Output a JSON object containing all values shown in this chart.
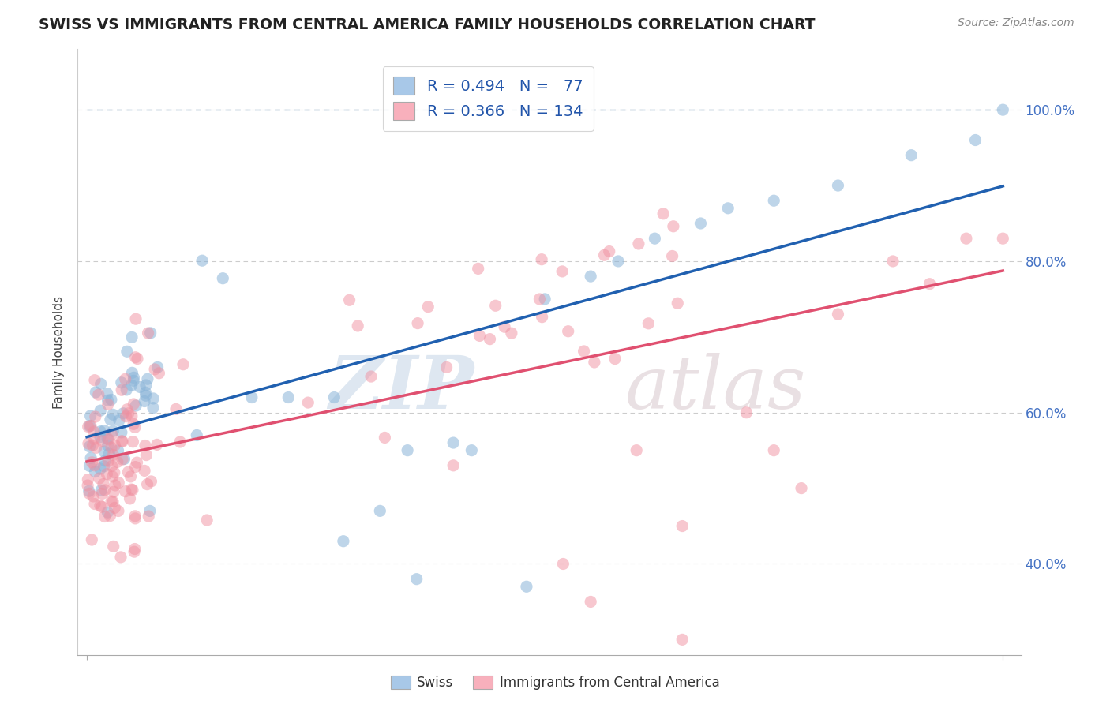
{
  "title": "SWISS VS IMMIGRANTS FROM CENTRAL AMERICA FAMILY HOUSEHOLDS CORRELATION CHART",
  "source": "Source: ZipAtlas.com",
  "ylabel": "Family Households",
  "y_ticks": [
    "40.0%",
    "60.0%",
    "80.0%",
    "100.0%"
  ],
  "y_tick_vals": [
    0.4,
    0.6,
    0.8,
    1.0
  ],
  "xlim": [
    -0.01,
    1.02
  ],
  "ylim": [
    0.28,
    1.08
  ],
  "swiss_color": "#8ab4d8",
  "immigrant_color": "#f090a0",
  "blue_line_color": "#2060b0",
  "pink_line_color": "#e05070",
  "dashed_line_color": "#90aec8",
  "swiss_R": 0.494,
  "swiss_N": 77,
  "immigrant_R": 0.366,
  "immigrant_N": 134
}
